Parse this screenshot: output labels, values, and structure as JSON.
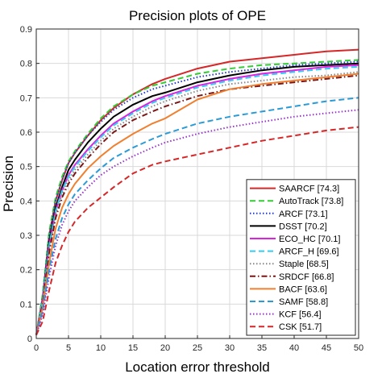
{
  "chart_data": {
    "type": "line",
    "title": "Precision plots of OPE",
    "xlabel": "Location error threshold",
    "ylabel": "Precision",
    "xlim": [
      0,
      50
    ],
    "ylim": [
      0,
      0.9
    ],
    "xticks": [
      0,
      5,
      10,
      15,
      20,
      25,
      30,
      35,
      40,
      45,
      50
    ],
    "yticks": [
      0,
      0.1,
      0.2,
      0.3,
      0.4,
      0.5,
      0.6,
      0.7,
      0.8,
      0.9
    ],
    "grid": true,
    "legend_position": "bottom-right",
    "x": [
      0,
      1,
      2,
      3,
      4,
      5,
      6,
      8,
      10,
      12,
      15,
      18,
      20,
      25,
      30,
      35,
      40,
      45,
      50
    ],
    "series": [
      {
        "name": "SAARCF [74.3]",
        "color": "#d62728",
        "dash": "solid",
        "values": [
          0.01,
          0.12,
          0.3,
          0.4,
          0.46,
          0.51,
          0.54,
          0.59,
          0.635,
          0.67,
          0.71,
          0.74,
          0.755,
          0.785,
          0.805,
          0.815,
          0.825,
          0.835,
          0.84
        ]
      },
      {
        "name": "AutoTrack [73.8]",
        "color": "#33cc33",
        "dash": "dash",
        "values": [
          0.01,
          0.13,
          0.31,
          0.41,
          0.47,
          0.515,
          0.545,
          0.595,
          0.64,
          0.675,
          0.71,
          0.735,
          0.745,
          0.77,
          0.785,
          0.795,
          0.8,
          0.805,
          0.81
        ]
      },
      {
        "name": "ARCF [73.1]",
        "color": "#1f3bd1",
        "dash": "dot",
        "values": [
          0.01,
          0.12,
          0.3,
          0.4,
          0.46,
          0.51,
          0.54,
          0.59,
          0.63,
          0.665,
          0.7,
          0.725,
          0.735,
          0.76,
          0.775,
          0.785,
          0.795,
          0.8,
          0.805
        ]
      },
      {
        "name": "DSST [70.2]",
        "color": "#000000",
        "dash": "solid",
        "values": [
          0.01,
          0.11,
          0.28,
          0.38,
          0.44,
          0.49,
          0.52,
          0.57,
          0.61,
          0.645,
          0.68,
          0.705,
          0.715,
          0.745,
          0.765,
          0.78,
          0.79,
          0.795,
          0.8
        ]
      },
      {
        "name": "ECO_HC [70.1]",
        "color": "#e020e0",
        "dash": "solid",
        "values": [
          0.01,
          0.11,
          0.27,
          0.37,
          0.43,
          0.475,
          0.505,
          0.55,
          0.59,
          0.625,
          0.66,
          0.69,
          0.705,
          0.735,
          0.755,
          0.77,
          0.78,
          0.79,
          0.795
        ]
      },
      {
        "name": "ARCF_H [69.6]",
        "color": "#33ccee",
        "dash": "dash",
        "values": [
          0.01,
          0.11,
          0.27,
          0.37,
          0.43,
          0.47,
          0.5,
          0.545,
          0.585,
          0.62,
          0.655,
          0.685,
          0.7,
          0.73,
          0.75,
          0.765,
          0.775,
          0.785,
          0.79
        ]
      },
      {
        "name": "Staple [68.5]",
        "color": "#888888",
        "dash": "dot",
        "values": [
          0.01,
          0.1,
          0.26,
          0.36,
          0.42,
          0.46,
          0.49,
          0.535,
          0.575,
          0.61,
          0.645,
          0.675,
          0.69,
          0.72,
          0.74,
          0.75,
          0.76,
          0.765,
          0.775
        ]
      },
      {
        "name": "SRDCF [66.8]",
        "color": "#7a1616",
        "dash": "dashdot",
        "values": [
          0.01,
          0.1,
          0.25,
          0.35,
          0.41,
          0.45,
          0.48,
          0.525,
          0.565,
          0.6,
          0.635,
          0.66,
          0.675,
          0.705,
          0.725,
          0.735,
          0.745,
          0.755,
          0.765
        ]
      },
      {
        "name": "BACF [63.6]",
        "color": "#f08030",
        "dash": "solid",
        "values": [
          0.01,
          0.09,
          0.22,
          0.32,
          0.38,
          0.42,
          0.45,
          0.495,
          0.53,
          0.56,
          0.595,
          0.625,
          0.64,
          0.695,
          0.725,
          0.74,
          0.75,
          0.76,
          0.77
        ]
      },
      {
        "name": "SAMF [58.8]",
        "color": "#2a9bd6",
        "dash": "dash",
        "values": [
          0.01,
          0.08,
          0.2,
          0.29,
          0.35,
          0.39,
          0.42,
          0.46,
          0.495,
          0.525,
          0.555,
          0.58,
          0.595,
          0.625,
          0.645,
          0.66,
          0.675,
          0.69,
          0.7
        ]
      },
      {
        "name": "KCF [56.4]",
        "color": "#9933cc",
        "dash": "dot",
        "values": [
          0.01,
          0.07,
          0.18,
          0.27,
          0.33,
          0.37,
          0.4,
          0.44,
          0.475,
          0.5,
          0.53,
          0.555,
          0.57,
          0.595,
          0.615,
          0.63,
          0.645,
          0.655,
          0.665
        ]
      },
      {
        "name": "CSK [51.7]",
        "color": "#d62728",
        "dash": "dash",
        "values": [
          0.01,
          0.05,
          0.14,
          0.22,
          0.27,
          0.31,
          0.34,
          0.38,
          0.41,
          0.44,
          0.48,
          0.505,
          0.515,
          0.535,
          0.555,
          0.575,
          0.59,
          0.605,
          0.615
        ]
      }
    ]
  }
}
